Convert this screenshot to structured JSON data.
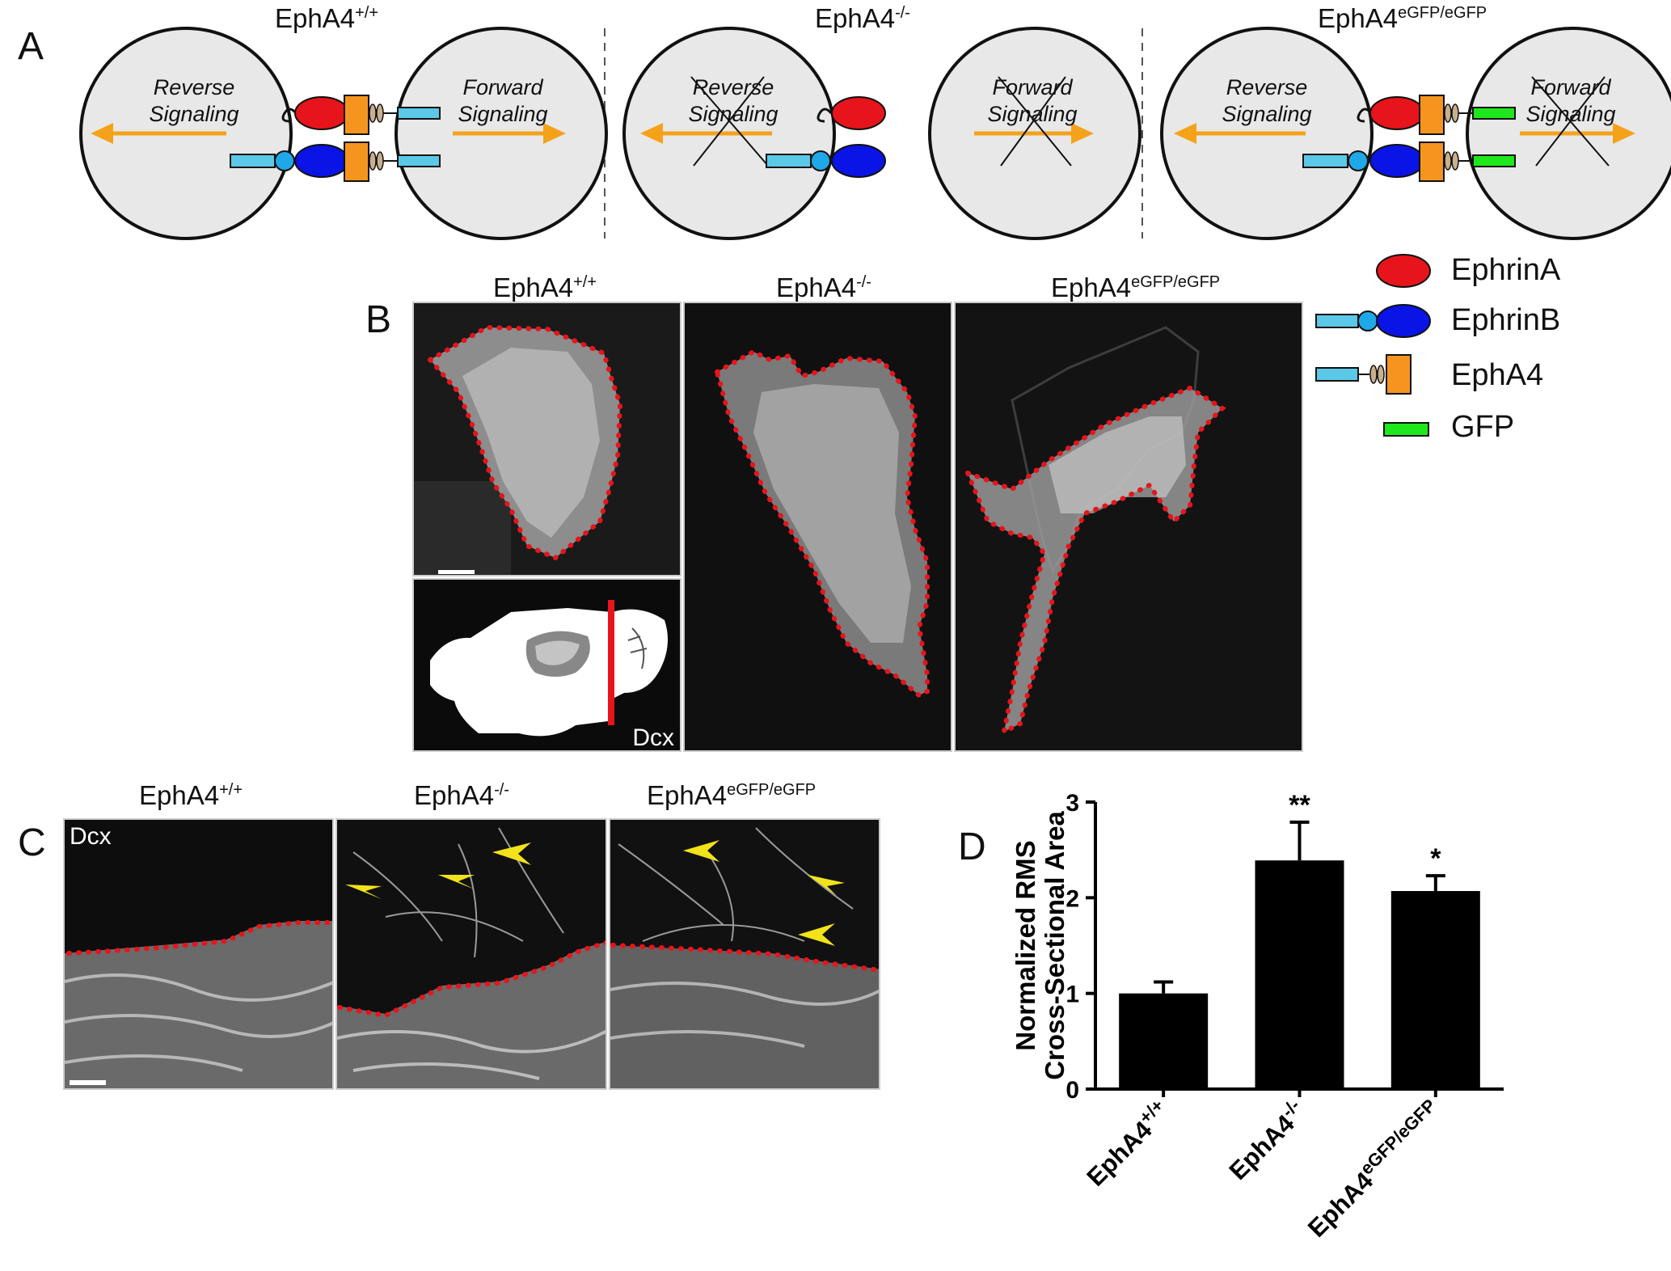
{
  "panel_a": {
    "label": "A",
    "columns": [
      {
        "genotype": "EphA4",
        "sup": "+/+",
        "reverse": "Reverse Signaling",
        "forward": "Forward Signaling"
      },
      {
        "genotype": "EphA4",
        "sup": "-/-",
        "reverse": "Reverse Signaling",
        "forward": "Forward Signaling"
      },
      {
        "genotype": "EphA4",
        "sup": "eGFP/eGFP",
        "reverse": "Reverse Signaling",
        "forward": "Forward Signaling"
      }
    ]
  },
  "legend": {
    "items": [
      {
        "label": "EphrinA",
        "color": "#e8141b"
      },
      {
        "label": "EphrinB",
        "color": "#0a14e6"
      },
      {
        "label": "EphA4",
        "color": "#f5951f"
      },
      {
        "label": "GFP",
        "color": "#1ee81b"
      }
    ]
  },
  "panel_b": {
    "label": "B",
    "columns": [
      {
        "genotype": "EphA4",
        "sup": "+/+"
      },
      {
        "genotype": "EphA4",
        "sup": "-/-"
      },
      {
        "genotype": "EphA4",
        "sup": "eGFP/eGFP"
      }
    ],
    "inset_label": "Dcx"
  },
  "panel_c": {
    "label": "C",
    "columns": [
      {
        "genotype": "EphA4",
        "sup": "+/+"
      },
      {
        "genotype": "EphA4",
        "sup": "-/-"
      },
      {
        "genotype": "EphA4",
        "sup": "eGFP/eGFP"
      }
    ],
    "stain_label": "Dcx"
  },
  "panel_d": {
    "label": "D"
  },
  "chart_data": {
    "type": "bar",
    "categories": [
      "EphA4+/+",
      "EphA4-/-",
      "EphA4eGFP/eGFP"
    ],
    "category_parts": [
      {
        "base": "EphA4",
        "sup": "+/+"
      },
      {
        "base": "EphA4",
        "sup": "-/-"
      },
      {
        "base": "EphA4",
        "sup": "eGFP/eGFP"
      }
    ],
    "values": [
      1.0,
      2.39,
      2.07
    ],
    "errors": [
      0.12,
      0.4,
      0.16
    ],
    "significance": [
      "",
      "**",
      "*"
    ],
    "ylabel_lines": [
      "Normalized RMS",
      "Cross-Sectional Area"
    ],
    "yticks": [
      "0",
      "1",
      "2",
      "3"
    ],
    "ylim": [
      0,
      3
    ],
    "bar_color": "#000000"
  }
}
